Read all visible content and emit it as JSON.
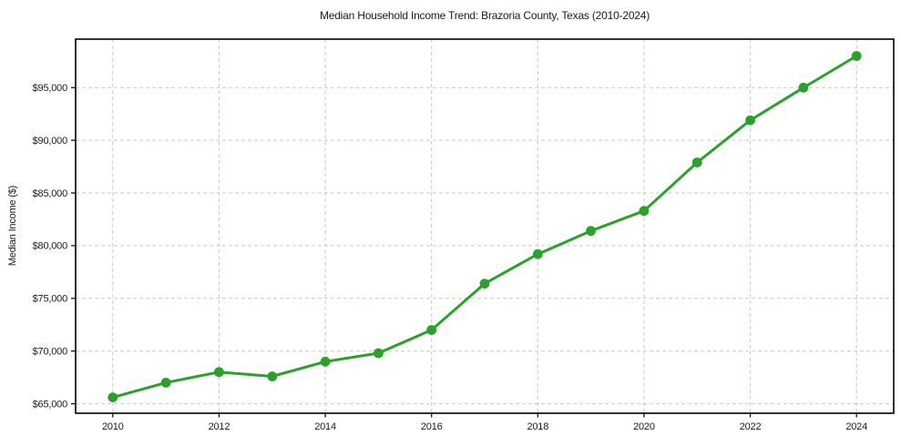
{
  "chart_data": {
    "type": "line",
    "title": "Median Household Income Trend: Brazoria County, Texas (2010-2024)",
    "xlabel": "",
    "ylabel": "Median Income ($)",
    "x": [
      2010,
      2011,
      2012,
      2013,
      2014,
      2015,
      2016,
      2017,
      2018,
      2019,
      2020,
      2021,
      2022,
      2023,
      2024
    ],
    "series": [
      {
        "name": "Median household income",
        "values": [
          65600,
          67000,
          68000,
          67600,
          69000,
          69800,
          72000,
          76400,
          79200,
          81400,
          83300,
          87900,
          91900,
          95000,
          98000
        ],
        "color": "#2ca02c",
        "marker": "circle"
      }
    ],
    "x_ticks": [
      2010,
      2012,
      2014,
      2016,
      2018,
      2020,
      2022,
      2024
    ],
    "x_tick_labels": [
      "2010",
      "2012",
      "2014",
      "2016",
      "2018",
      "2020",
      "2022",
      "2024"
    ],
    "y_ticks": [
      65000,
      70000,
      75000,
      80000,
      85000,
      90000,
      95000
    ],
    "y_tick_labels": [
      "$65,000",
      "$70,000",
      "$75,000",
      "$80,000",
      "$85,000",
      "$90,000",
      "$95,000"
    ],
    "xlim": [
      2009.3,
      2024.7
    ],
    "ylim": [
      64100,
      99600
    ],
    "grid": true,
    "legend_position": "none",
    "colors": {
      "line": "#2ca02c",
      "marker": "#2ca02c",
      "grid": "#c9c9c9",
      "spine": "#000000",
      "text": "#1a1a1a",
      "background": "#ffffff"
    }
  }
}
